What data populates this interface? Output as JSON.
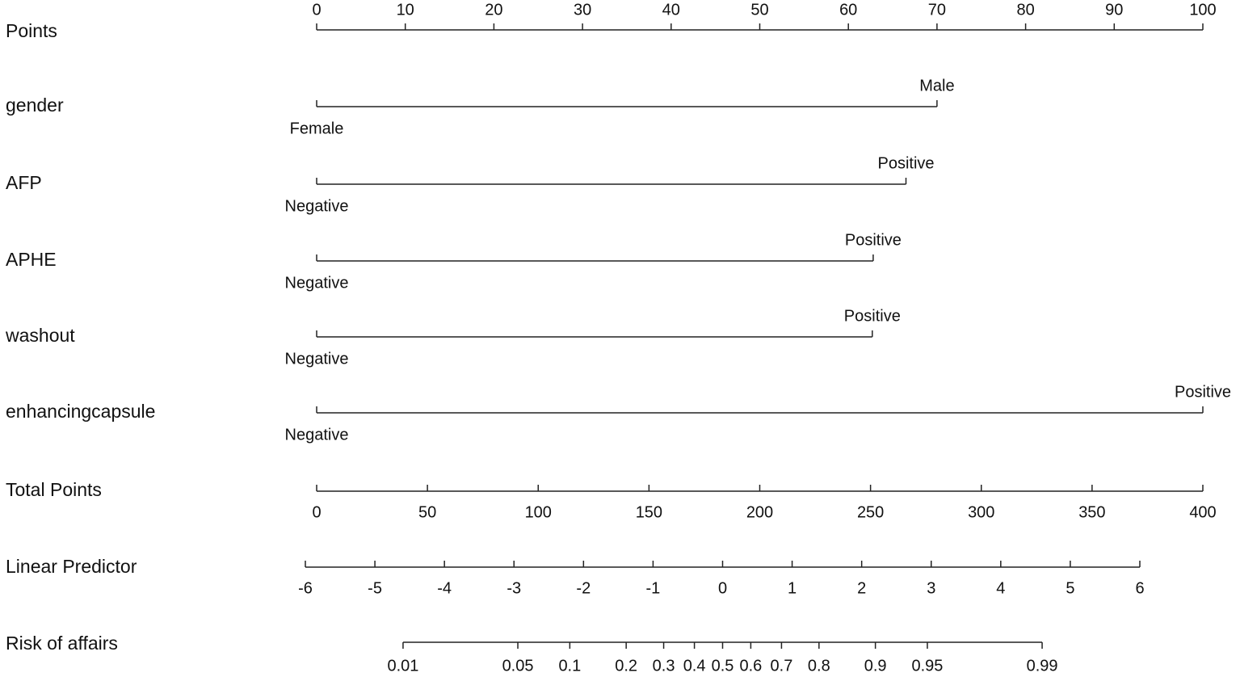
{
  "chart_data": {
    "type": "nomogram",
    "points": {
      "label": "Points",
      "xlim": [
        0,
        100
      ],
      "ticks": [
        0,
        10,
        20,
        30,
        40,
        50,
        60,
        70,
        80,
        90,
        100
      ]
    },
    "variables": [
      {
        "name": "gender",
        "levels": [
          "Female",
          "Male"
        ],
        "values": [
          0,
          70
        ]
      },
      {
        "name": "AFP",
        "levels": [
          "Negative",
          "Positive"
        ],
        "values": [
          0,
          66.5
        ]
      },
      {
        "name": "APHE",
        "levels": [
          "Negative",
          "Positive"
        ],
        "values": [
          0,
          62.8
        ]
      },
      {
        "name": "washout",
        "levels": [
          "Negative",
          "Positive"
        ],
        "values": [
          0,
          62.7
        ]
      },
      {
        "name": "enhancingcapsule",
        "levels": [
          "Negative",
          "Positive"
        ],
        "values": [
          0,
          100
        ]
      }
    ],
    "total_points": {
      "label": "Total Points",
      "xlim": [
        0,
        400
      ],
      "ticks": [
        0,
        50,
        100,
        150,
        200,
        250,
        300,
        350,
        400
      ]
    },
    "linear_predictor": {
      "label": "Linear Predictor",
      "xlim": [
        -6,
        6
      ],
      "ticks": [
        -6,
        -5,
        -4,
        -3,
        -2,
        -1,
        0,
        1,
        2,
        3,
        4,
        5,
        6
      ]
    },
    "risk": {
      "label": "Risk of affairs",
      "scale": "logit",
      "ticks": [
        0.01,
        0.05,
        0.1,
        0.2,
        0.3,
        0.4,
        0.5,
        0.6,
        0.7,
        0.8,
        0.9,
        0.95,
        0.99
      ]
    }
  }
}
